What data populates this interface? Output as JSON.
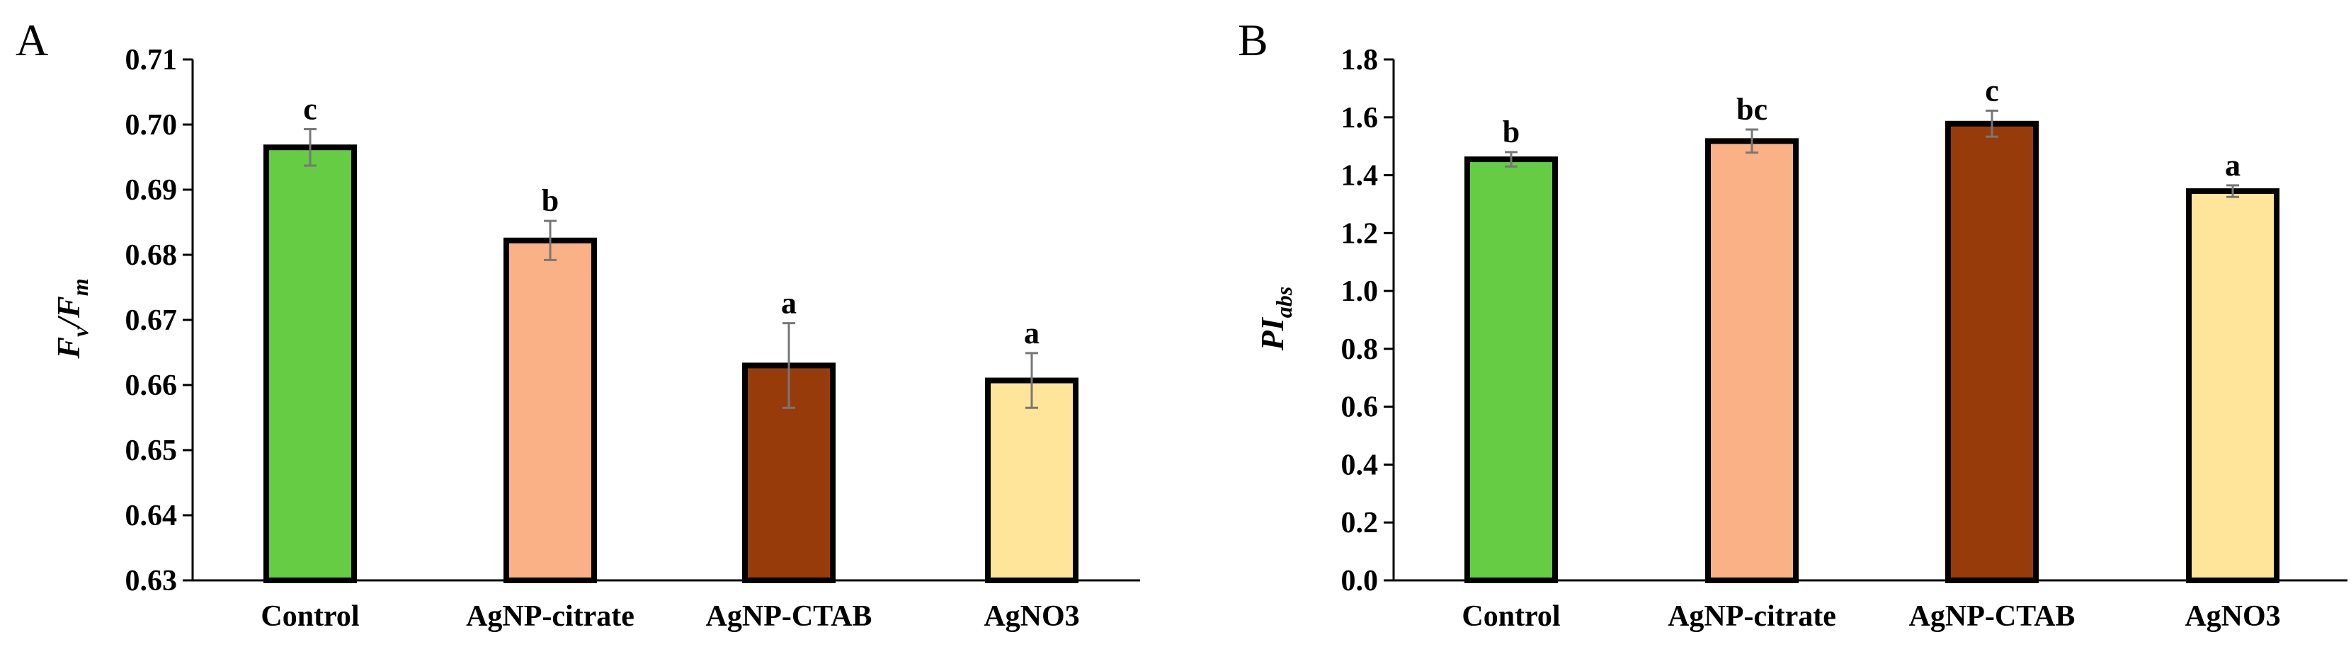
{
  "chart_data": [
    {
      "panel": "A",
      "type": "bar",
      "ylabel": "Fv/Fm",
      "ylabel_main_1": "F",
      "ylabel_sub_1": "v",
      "ylabel_sep": "/F",
      "ylabel_sub_2": "m",
      "ylim": [
        0.63,
        0.71
      ],
      "yticks": [
        0.63,
        0.64,
        0.65,
        0.66,
        0.67,
        0.68,
        0.69,
        0.7,
        0.71
      ],
      "ytick_labels": [
        "0.63",
        "0.64",
        "0.65",
        "0.66",
        "0.67",
        "0.68",
        "0.69",
        "0.70",
        "0.71"
      ],
      "categories": [
        "Control",
        "AgNP-citrate",
        "AgNP-CTAB",
        "AgNO3"
      ],
      "values": [
        0.6965,
        0.6822,
        0.663,
        0.6607
      ],
      "errors": [
        0.0028,
        0.003,
        0.0065,
        0.0042
      ],
      "significance": [
        "c",
        "b",
        "a",
        "a"
      ],
      "colors": [
        "#66cc44",
        "#f9b185",
        "#973b0b",
        "#fee599"
      ]
    },
    {
      "panel": "B",
      "type": "bar",
      "ylabel": "PIabs",
      "ylabel_main": "PI",
      "ylabel_sub": "abs",
      "ylim": [
        0.0,
        1.8
      ],
      "yticks": [
        0.0,
        0.2,
        0.4,
        0.6,
        0.8,
        1.0,
        1.2,
        1.4,
        1.6,
        1.8
      ],
      "ytick_labels": [
        "0.0",
        "0.2",
        "0.4",
        "0.6",
        "0.8",
        "1.0",
        "1.2",
        "1.4",
        "1.6",
        "1.8"
      ],
      "categories": [
        "Control",
        "AgNP-citrate",
        "AgNP-CTAB",
        "AgNO3"
      ],
      "values": [
        1.455,
        1.518,
        1.578,
        1.345
      ],
      "errors": [
        0.025,
        0.04,
        0.045,
        0.02
      ],
      "significance": [
        "b",
        "bc",
        "c",
        "a"
      ],
      "colors": [
        "#66cc44",
        "#f9b185",
        "#973b0b",
        "#fee599"
      ]
    }
  ]
}
